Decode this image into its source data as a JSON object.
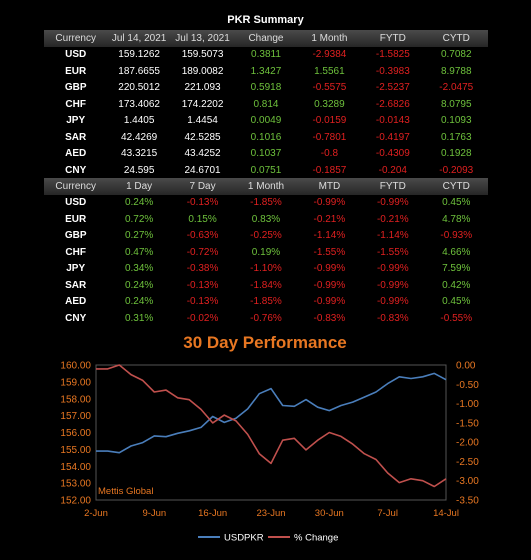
{
  "summary": {
    "title": "PKR Summary",
    "headers": [
      "Currency",
      "Jul 14, 2021",
      "Jul 13, 2021",
      "Change",
      "1 Month",
      "FYTD",
      "CYTD"
    ],
    "rows": [
      [
        "USD",
        "159.1262",
        "159.5073",
        "0.3811",
        "-2.9384",
        "-1.5825",
        "0.7082"
      ],
      [
        "EUR",
        "187.6655",
        "189.0082",
        "1.3427",
        "1.5561",
        "-0.3983",
        "8.9788"
      ],
      [
        "GBP",
        "220.5012",
        "221.093",
        "0.5918",
        "-0.5575",
        "-2.5237",
        "-2.0475"
      ],
      [
        "CHF",
        "173.4062",
        "174.2202",
        "0.814",
        "0.3289",
        "-2.6826",
        "8.0795"
      ],
      [
        "JPY",
        "1.4405",
        "1.4454",
        "0.0049",
        "-0.0159",
        "-0.0143",
        "0.1093"
      ],
      [
        "SAR",
        "42.4269",
        "42.5285",
        "0.1016",
        "-0.7801",
        "-0.4197",
        "0.1763"
      ],
      [
        "AED",
        "43.3215",
        "43.4252",
        "0.1037",
        "-0.8",
        "-0.4309",
        "0.1928"
      ],
      [
        "CNY",
        "24.595",
        "24.6701",
        "0.0751",
        "-0.1857",
        "-0.204",
        "-0.2093"
      ]
    ]
  },
  "returns": {
    "headers": [
      "Currency",
      "1 Day",
      "7 Day",
      "1 Month",
      "MTD",
      "FYTD",
      "CYTD"
    ],
    "rows": [
      [
        "USD",
        "0.24%",
        "-0.13%",
        "-1.85%",
        "-0.99%",
        "-0.99%",
        "0.45%"
      ],
      [
        "EUR",
        "0.72%",
        "0.15%",
        "0.83%",
        "-0.21%",
        "-0.21%",
        "4.78%"
      ],
      [
        "GBP",
        "0.27%",
        "-0.63%",
        "-0.25%",
        "-1.14%",
        "-1.14%",
        "-0.93%"
      ],
      [
        "CHF",
        "0.47%",
        "-0.72%",
        "0.19%",
        "-1.55%",
        "-1.55%",
        "4.66%"
      ],
      [
        "JPY",
        "0.34%",
        "-0.38%",
        "-1.10%",
        "-0.99%",
        "-0.99%",
        "7.59%"
      ],
      [
        "SAR",
        "0.24%",
        "-0.13%",
        "-1.84%",
        "-0.99%",
        "-0.99%",
        "0.42%"
      ],
      [
        "AED",
        "0.24%",
        "-0.13%",
        "-1.85%",
        "-0.99%",
        "-0.99%",
        "0.45%"
      ],
      [
        "CNY",
        "0.31%",
        "-0.02%",
        "-0.76%",
        "-0.83%",
        "-0.83%",
        "-0.55%"
      ]
    ]
  },
  "colors": {
    "positive": "#6ec13c",
    "negative": "#e02020",
    "usdpkr_line": "#4a7ebb",
    "change_line": "#c0504d",
    "chart_title": "#e87722",
    "left_axis": "#e87722",
    "right_axis": "#e87722"
  },
  "chart_data": {
    "type": "line",
    "title": "30 Day Performance",
    "watermark": "Mettis Global",
    "x": [
      "2-Jun",
      "3-Jun",
      "4-Jun",
      "7-Jun",
      "8-Jun",
      "9-Jun",
      "10-Jun",
      "11-Jun",
      "14-Jun",
      "15-Jun",
      "16-Jun",
      "17-Jun",
      "18-Jun",
      "21-Jun",
      "22-Jun",
      "23-Jun",
      "24-Jun",
      "25-Jun",
      "28-Jun",
      "29-Jun",
      "30-Jun",
      "1-Jul",
      "2-Jul",
      "5-Jul",
      "6-Jul",
      "7-Jul",
      "8-Jul",
      "9-Jul",
      "12-Jul",
      "13-Jul",
      "14-Jul"
    ],
    "xticks": [
      "2-Jun",
      "9-Jun",
      "16-Jun",
      "23-Jun",
      "30-Jun",
      "7-Jul",
      "14-Jul"
    ],
    "series": [
      {
        "name": "USDPKR",
        "axis": "left",
        "values": [
          154.9,
          154.9,
          154.8,
          155.2,
          155.4,
          155.8,
          155.75,
          155.95,
          156.1,
          156.3,
          156.95,
          156.6,
          156.85,
          157.4,
          158.3,
          158.6,
          157.6,
          157.55,
          157.95,
          157.5,
          157.3,
          157.6,
          157.8,
          158.1,
          158.4,
          158.9,
          159.3,
          159.2,
          159.3,
          159.5,
          159.13
        ]
      },
      {
        "name": "% Change",
        "axis": "right",
        "values": [
          -0.1,
          -0.1,
          0.0,
          -0.25,
          -0.4,
          -0.7,
          -0.65,
          -0.85,
          -0.9,
          -1.15,
          -1.5,
          -1.3,
          -1.45,
          -1.8,
          -2.3,
          -2.55,
          -1.95,
          -1.9,
          -2.2,
          -1.95,
          -1.75,
          -1.85,
          -2.05,
          -2.3,
          -2.45,
          -2.8,
          -3.05,
          -2.95,
          -3.0,
          -3.15,
          -2.95
        ]
      }
    ],
    "yleft": {
      "min": 152.0,
      "max": 160.0,
      "ticks": [
        "152.00",
        "153.00",
        "154.00",
        "155.00",
        "156.00",
        "157.00",
        "158.00",
        "159.00",
        "160.00"
      ]
    },
    "yright": {
      "min": -3.5,
      "max": 0.0,
      "ticks": [
        "0.00",
        "-0.50",
        "-1.00",
        "-1.50",
        "-2.00",
        "-2.50",
        "-3.00",
        "-3.50"
      ]
    },
    "legend": [
      "USDPKR",
      "% Change"
    ],
    "legend_position": "bottom"
  }
}
